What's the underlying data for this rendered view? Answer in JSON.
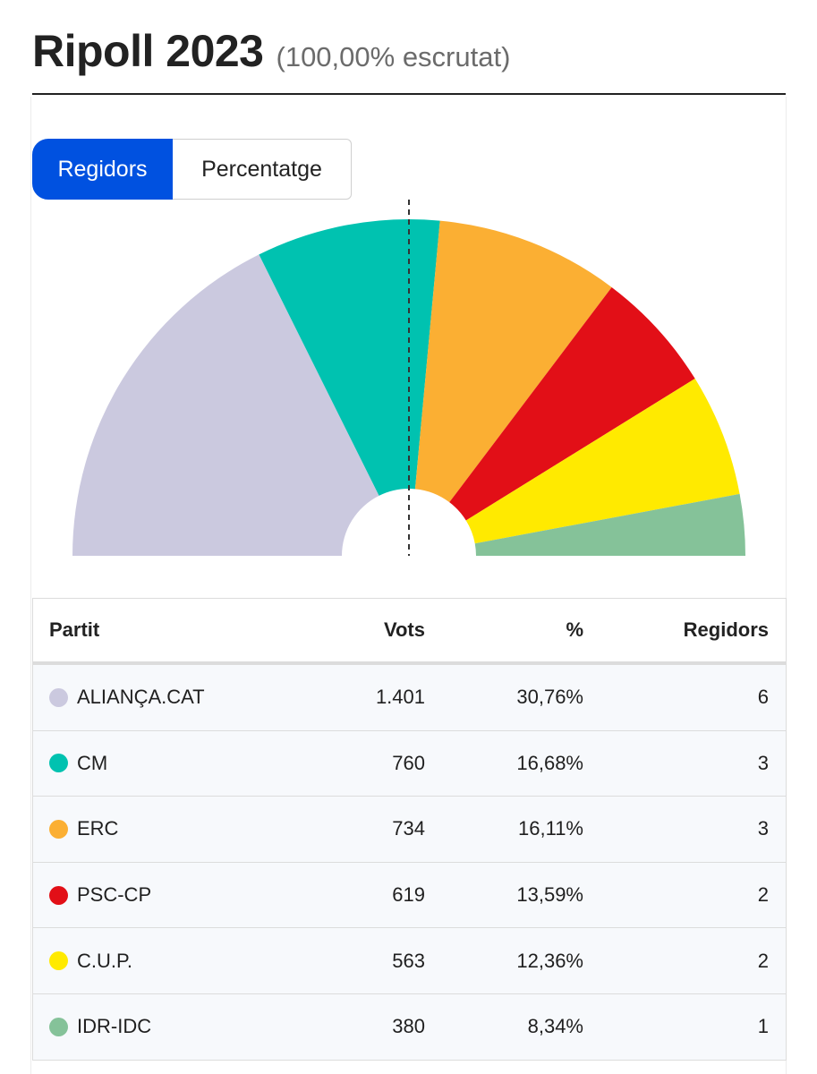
{
  "header": {
    "title": "Ripoll 2023",
    "subtitle": "(100,00% escrutat)"
  },
  "toggle": {
    "options": [
      "Regidors",
      "Percentatge"
    ],
    "active": "Regidors"
  },
  "colors": {
    "accent": "#0051e0",
    "majority_line": "#333333"
  },
  "table": {
    "headers": {
      "party": "Partit",
      "votes": "Vots",
      "pct": "%",
      "seats": "Regidors"
    },
    "rows": [
      {
        "party": "ALIANÇA.CAT",
        "votes": "1.401",
        "pct": "30,76%",
        "seats": "6",
        "color": "#cbc9df"
      },
      {
        "party": "CM",
        "votes": "760",
        "pct": "16,68%",
        "seats": "3",
        "color": "#00c2b0"
      },
      {
        "party": "ERC",
        "votes": "734",
        "pct": "16,11%",
        "seats": "3",
        "color": "#fbaf33"
      },
      {
        "party": "PSC-CP",
        "votes": "619",
        "pct": "13,59%",
        "seats": "2",
        "color": "#e20f17"
      },
      {
        "party": "C.U.P.",
        "votes": "563",
        "pct": "12,36%",
        "seats": "2",
        "color": "#ffea00"
      },
      {
        "party": "IDR-IDC",
        "votes": "380",
        "pct": "8,34%",
        "seats": "1",
        "color": "#85c299"
      }
    ]
  },
  "chart_data": {
    "type": "pie",
    "subtype": "half-donut (parliament seats)",
    "categories": [
      "ALIANÇA.CAT",
      "CM",
      "ERC",
      "PSC-CP",
      "C.U.P.",
      "IDR-IDC"
    ],
    "values": [
      6,
      3,
      3,
      2,
      2,
      1
    ],
    "colors": [
      "#cbc9df",
      "#00c2b0",
      "#fbaf33",
      "#e20f17",
      "#ffea00",
      "#85c299"
    ],
    "total_seats": 17,
    "majority_line": true,
    "majority_seats": 9
  }
}
